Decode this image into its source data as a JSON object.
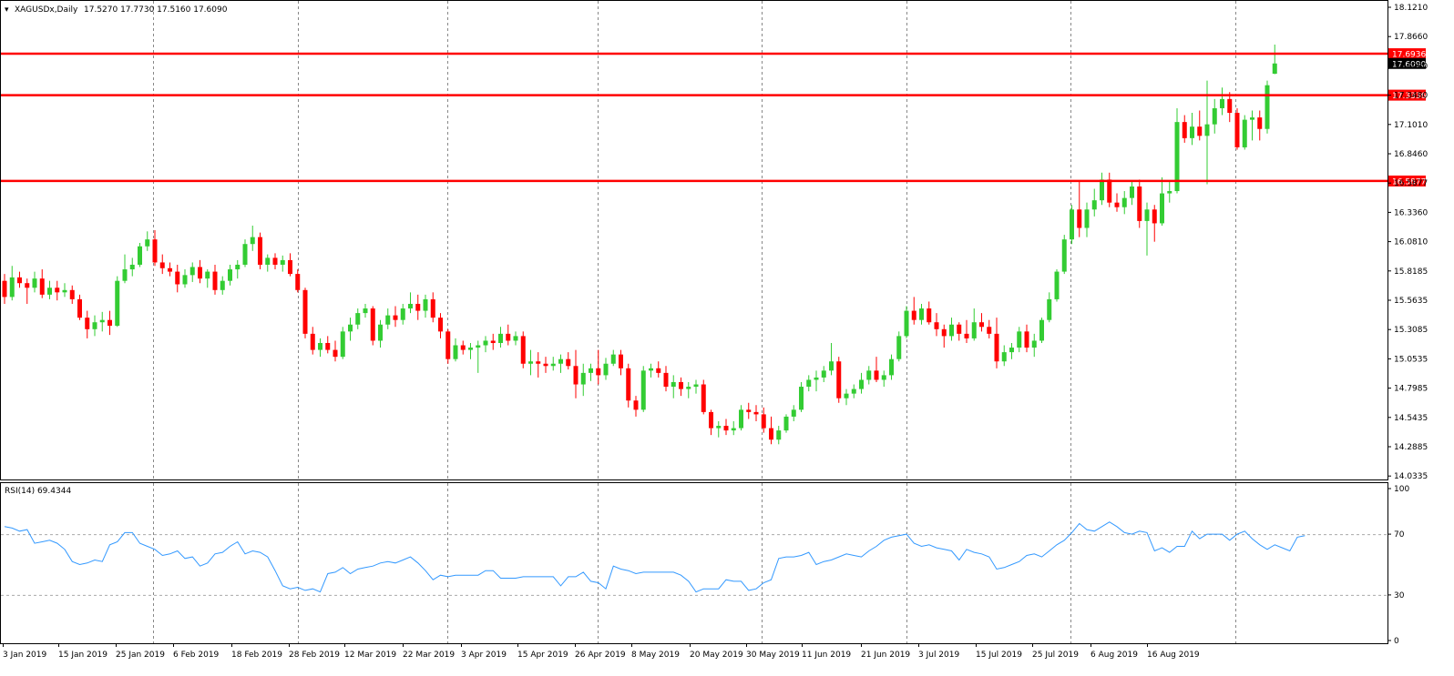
{
  "header": {
    "symbol_label": "XAGUSDx,Daily",
    "ohlc_text": "17.5270 17.7730 17.5160 17.6090"
  },
  "rsi_header": {
    "label": "RSI(14) 69.4344"
  },
  "price_axis": {
    "labels": [
      "18.1210",
      "17.8660",
      "17.6080",
      "17.3480",
      "17.1010",
      "16.8460",
      "16.5877",
      "16.3360",
      "16.0810",
      "15.8185",
      "15.5635",
      "15.3085",
      "15.0535",
      "14.7985",
      "14.5435",
      "14.2885",
      "14.0335"
    ]
  },
  "hlines": [
    {
      "label": "17.6936",
      "value": 17.6936
    },
    {
      "label": "17.3336",
      "value": 17.3336
    },
    {
      "label": "16.5877",
      "value": 16.5877
    }
  ],
  "current_price": {
    "label": "17.6090",
    "value": 17.609
  },
  "rsi_axis": {
    "labels": [
      "100",
      "70",
      "30",
      "0"
    ]
  },
  "time_axis": {
    "labels": [
      "3 Jan 2019",
      "15 Jan 2019",
      "25 Jan 2019",
      "6 Feb 2019",
      "18 Feb 2019",
      "28 Feb 2019",
      "12 Mar 2019",
      "22 Mar 2019",
      "3 Apr 2019",
      "15 Apr 2019",
      "26 Apr 2019",
      "8 May 2019",
      "20 May 2019",
      "30 May 2019",
      "11 Jun 2019",
      "21 Jun 2019",
      "3 Jul 2019",
      "15 Jul 2019",
      "25 Jul 2019",
      "6 Aug 2019",
      "16 Aug 2019"
    ]
  },
  "colors": {
    "bull": "#33cc33",
    "bear": "#ff0000",
    "hline": "#ff0000",
    "rsi": "#3399ff",
    "grid": "#888888"
  },
  "chart_data": {
    "type": "candlestick",
    "symbol": "XAGUSDx",
    "timeframe": "Daily",
    "price_range": [
      14.0335,
      18.121
    ],
    "candles": [
      [
        15.72,
        15.78,
        15.52,
        15.58
      ],
      [
        15.58,
        15.85,
        15.55,
        15.75
      ],
      [
        15.75,
        15.8,
        15.66,
        15.7
      ],
      [
        15.7,
        15.74,
        15.52,
        15.66
      ],
      [
        15.66,
        15.8,
        15.62,
        15.74
      ],
      [
        15.74,
        15.82,
        15.57,
        15.6
      ],
      [
        15.6,
        15.72,
        15.56,
        15.66
      ],
      [
        15.66,
        15.72,
        15.55,
        15.62
      ],
      [
        15.62,
        15.7,
        15.58,
        15.64
      ],
      [
        15.64,
        15.68,
        15.52,
        15.56
      ],
      [
        15.56,
        15.6,
        15.38,
        15.4
      ],
      [
        15.4,
        15.46,
        15.22,
        15.3
      ],
      [
        15.3,
        15.42,
        15.24,
        15.36
      ],
      [
        15.36,
        15.45,
        15.28,
        15.38
      ],
      [
        15.38,
        15.46,
        15.25,
        15.33
      ],
      [
        15.33,
        15.76,
        15.32,
        15.72
      ],
      [
        15.72,
        15.95,
        15.7,
        15.82
      ],
      [
        15.82,
        15.92,
        15.76,
        15.86
      ],
      [
        15.86,
        16.05,
        15.84,
        16.02
      ],
      [
        16.02,
        16.15,
        15.98,
        16.08
      ],
      [
        16.08,
        16.16,
        15.85,
        15.88
      ],
      [
        15.88,
        15.95,
        15.78,
        15.83
      ],
      [
        15.83,
        15.88,
        15.76,
        15.8
      ],
      [
        15.8,
        15.86,
        15.62,
        15.69
      ],
      [
        15.69,
        15.82,
        15.66,
        15.77
      ],
      [
        15.77,
        15.88,
        15.71,
        15.84
      ],
      [
        15.84,
        15.9,
        15.7,
        15.74
      ],
      [
        15.74,
        15.82,
        15.66,
        15.8
      ],
      [
        15.8,
        15.86,
        15.6,
        15.64
      ],
      [
        15.64,
        15.76,
        15.6,
        15.72
      ],
      [
        15.72,
        15.86,
        15.68,
        15.82
      ],
      [
        15.82,
        15.9,
        15.74,
        15.86
      ],
      [
        15.86,
        16.08,
        15.84,
        16.04
      ],
      [
        16.04,
        16.2,
        15.98,
        16.1
      ],
      [
        16.1,
        16.14,
        15.82,
        15.86
      ],
      [
        15.86,
        15.95,
        15.8,
        15.92
      ],
      [
        15.92,
        15.96,
        15.82,
        15.86
      ],
      [
        15.86,
        15.94,
        15.8,
        15.9
      ],
      [
        15.9,
        15.96,
        15.76,
        15.78
      ],
      [
        15.78,
        15.82,
        15.62,
        15.64
      ],
      [
        15.64,
        15.66,
        15.22,
        15.26
      ],
      [
        15.26,
        15.32,
        15.08,
        15.12
      ],
      [
        15.12,
        15.22,
        15.06,
        15.18
      ],
      [
        15.18,
        15.24,
        15.09,
        15.12
      ],
      [
        15.12,
        15.2,
        15.02,
        15.06
      ],
      [
        15.06,
        15.32,
        15.04,
        15.28
      ],
      [
        15.28,
        15.4,
        15.2,
        15.34
      ],
      [
        15.34,
        15.48,
        15.3,
        15.44
      ],
      [
        15.44,
        15.52,
        15.4,
        15.48
      ],
      [
        15.48,
        15.5,
        15.16,
        15.2
      ],
      [
        15.2,
        15.38,
        15.14,
        15.34
      ],
      [
        15.34,
        15.48,
        15.3,
        15.42
      ],
      [
        15.42,
        15.5,
        15.32,
        15.38
      ],
      [
        15.38,
        15.52,
        15.34,
        15.48
      ],
      [
        15.48,
        15.62,
        15.44,
        15.52
      ],
      [
        15.52,
        15.6,
        15.38,
        15.46
      ],
      [
        15.46,
        15.6,
        15.4,
        15.56
      ],
      [
        15.56,
        15.62,
        15.36,
        15.4
      ],
      [
        15.4,
        15.44,
        15.22,
        15.28
      ],
      [
        15.28,
        15.3,
        15.0,
        15.04
      ],
      [
        15.04,
        15.22,
        15.02,
        15.16
      ],
      [
        15.16,
        15.2,
        15.08,
        15.12
      ],
      [
        15.12,
        15.18,
        15.04,
        15.14
      ],
      [
        15.14,
        15.2,
        14.92,
        15.16
      ],
      [
        15.16,
        15.24,
        15.1,
        15.2
      ],
      [
        15.2,
        15.26,
        15.12,
        15.18
      ],
      [
        15.18,
        15.32,
        15.14,
        15.26
      ],
      [
        15.26,
        15.34,
        15.16,
        15.2
      ],
      [
        15.2,
        15.28,
        15.16,
        15.24
      ],
      [
        15.24,
        15.28,
        14.96,
        15.0
      ],
      [
        15.0,
        15.12,
        14.9,
        15.02
      ],
      [
        15.02,
        15.1,
        14.88,
        15.0
      ],
      [
        15.0,
        15.06,
        14.92,
        14.98
      ],
      [
        14.98,
        15.06,
        14.94,
        15.0
      ],
      [
        15.0,
        15.08,
        14.92,
        15.04
      ],
      [
        15.04,
        15.1,
        14.95,
        14.98
      ],
      [
        14.98,
        15.12,
        14.7,
        14.82
      ],
      [
        14.82,
        15.0,
        14.72,
        14.92
      ],
      [
        14.92,
        15.0,
        14.85,
        14.96
      ],
      [
        14.96,
        15.12,
        14.82,
        14.9
      ],
      [
        14.9,
        15.05,
        14.86,
        15.0
      ],
      [
        15.0,
        15.12,
        14.98,
        15.08
      ],
      [
        15.08,
        15.12,
        14.9,
        14.96
      ],
      [
        14.96,
        15.0,
        14.62,
        14.68
      ],
      [
        14.68,
        14.72,
        14.54,
        14.6
      ],
      [
        14.6,
        14.98,
        14.58,
        14.94
      ],
      [
        14.94,
        15.0,
        14.88,
        14.96
      ],
      [
        14.96,
        15.02,
        14.88,
        14.92
      ],
      [
        14.92,
        14.98,
        14.76,
        14.8
      ],
      [
        14.8,
        14.9,
        14.7,
        14.84
      ],
      [
        14.84,
        14.88,
        14.72,
        14.78
      ],
      [
        14.78,
        14.84,
        14.7,
        14.8
      ],
      [
        14.8,
        14.86,
        14.74,
        14.82
      ],
      [
        14.82,
        14.86,
        14.56,
        14.58
      ],
      [
        14.58,
        14.6,
        14.38,
        14.44
      ],
      [
        14.44,
        14.5,
        14.36,
        14.46
      ],
      [
        14.46,
        14.52,
        14.38,
        14.42
      ],
      [
        14.42,
        14.5,
        14.38,
        14.44
      ],
      [
        14.44,
        14.64,
        14.42,
        14.6
      ],
      [
        14.6,
        14.66,
        14.52,
        14.58
      ],
      [
        14.58,
        14.64,
        14.5,
        14.56
      ],
      [
        14.56,
        14.62,
        14.4,
        14.44
      ],
      [
        14.44,
        14.54,
        14.3,
        14.34
      ],
      [
        14.34,
        14.46,
        14.3,
        14.42
      ],
      [
        14.42,
        14.56,
        14.4,
        14.54
      ],
      [
        14.54,
        14.64,
        14.5,
        14.6
      ],
      [
        14.6,
        14.84,
        14.58,
        14.8
      ],
      [
        14.8,
        14.9,
        14.76,
        14.86
      ],
      [
        14.86,
        14.94,
        14.76,
        14.88
      ],
      [
        14.88,
        14.98,
        14.84,
        14.94
      ],
      [
        14.94,
        15.18,
        14.9,
        15.02
      ],
      [
        15.02,
        15.06,
        14.66,
        14.7
      ],
      [
        14.7,
        14.78,
        14.64,
        14.74
      ],
      [
        14.74,
        14.82,
        14.7,
        14.78
      ],
      [
        14.78,
        14.92,
        14.74,
        14.86
      ],
      [
        14.86,
        14.98,
        14.82,
        14.94
      ],
      [
        14.94,
        15.06,
        14.84,
        14.86
      ],
      [
        14.86,
        14.94,
        14.8,
        14.9
      ],
      [
        14.9,
        15.08,
        14.86,
        15.04
      ],
      [
        15.04,
        15.28,
        15.02,
        15.24
      ],
      [
        15.24,
        15.5,
        15.22,
        15.46
      ],
      [
        15.46,
        15.58,
        15.34,
        15.38
      ],
      [
        15.38,
        15.52,
        15.34,
        15.48
      ],
      [
        15.48,
        15.54,
        15.34,
        15.36
      ],
      [
        15.36,
        15.44,
        15.24,
        15.3
      ],
      [
        15.3,
        15.34,
        15.14,
        15.24
      ],
      [
        15.24,
        15.4,
        15.2,
        15.34
      ],
      [
        15.34,
        15.36,
        15.2,
        15.26
      ],
      [
        15.26,
        15.38,
        15.18,
        15.22
      ],
      [
        15.22,
        15.48,
        15.2,
        15.36
      ],
      [
        15.36,
        15.44,
        15.28,
        15.32
      ],
      [
        15.32,
        15.38,
        15.22,
        15.26
      ],
      [
        15.26,
        15.4,
        14.96,
        15.02
      ],
      [
        15.02,
        15.16,
        14.98,
        15.1
      ],
      [
        15.1,
        15.18,
        15.04,
        15.14
      ],
      [
        15.14,
        15.32,
        15.1,
        15.28
      ],
      [
        15.28,
        15.34,
        15.1,
        15.14
      ],
      [
        15.14,
        15.26,
        15.06,
        15.2
      ],
      [
        15.2,
        15.4,
        15.18,
        15.38
      ],
      [
        15.38,
        15.62,
        15.36,
        15.56
      ],
      [
        15.56,
        15.82,
        15.54,
        15.8
      ],
      [
        15.8,
        16.12,
        15.78,
        16.08
      ],
      [
        16.08,
        16.38,
        16.04,
        16.34
      ],
      [
        16.34,
        16.58,
        16.1,
        16.18
      ],
      [
        16.18,
        16.4,
        16.1,
        16.34
      ],
      [
        16.34,
        16.52,
        16.28,
        16.42
      ],
      [
        16.42,
        16.66,
        16.38,
        16.6
      ],
      [
        16.6,
        16.66,
        16.36,
        16.4
      ],
      [
        16.4,
        16.48,
        16.32,
        16.36
      ],
      [
        16.36,
        16.5,
        16.3,
        16.44
      ],
      [
        16.44,
        16.58,
        16.38,
        16.54
      ],
      [
        16.54,
        16.6,
        16.18,
        16.24
      ],
      [
        16.24,
        16.4,
        15.94,
        16.34
      ],
      [
        16.34,
        16.38,
        16.06,
        16.22
      ],
      [
        16.22,
        16.62,
        16.2,
        16.48
      ],
      [
        16.48,
        16.58,
        16.4,
        16.5
      ],
      [
        16.5,
        17.22,
        16.48,
        17.1
      ],
      [
        17.1,
        17.16,
        16.92,
        16.96
      ],
      [
        16.96,
        17.18,
        16.9,
        17.06
      ],
      [
        17.06,
        17.2,
        16.94,
        16.98
      ],
      [
        16.98,
        17.46,
        16.56,
        17.08
      ],
      [
        17.08,
        17.3,
        17.0,
        17.22
      ],
      [
        17.22,
        17.4,
        17.16,
        17.3
      ],
      [
        17.3,
        17.36,
        17.1,
        17.18
      ],
      [
        17.18,
        17.22,
        16.86,
        16.88
      ],
      [
        16.88,
        17.16,
        16.86,
        17.12
      ],
      [
        17.12,
        17.2,
        16.94,
        17.14
      ],
      [
        17.14,
        17.2,
        16.94,
        17.04
      ],
      [
        17.04,
        17.46,
        17.0,
        17.42
      ],
      [
        17.52,
        17.773,
        17.516,
        17.609
      ]
    ],
    "rsi": {
      "name": "RSI(14)",
      "last": 69.4344,
      "levels": [
        70,
        30
      ],
      "range": [
        0,
        100
      ],
      "values": [
        75,
        74,
        72,
        73,
        64,
        65,
        66,
        64,
        60,
        52,
        50,
        51,
        53,
        52,
        63,
        65,
        71,
        71,
        64,
        62,
        60,
        56,
        57,
        59,
        54,
        55,
        49,
        51,
        57,
        58,
        62,
        65,
        57,
        59,
        58,
        55,
        46,
        36,
        34,
        35,
        33,
        34,
        32,
        44,
        45,
        48,
        44,
        47,
        48,
        49,
        51,
        52,
        51,
        53,
        55,
        51,
        46,
        40,
        43,
        42,
        43,
        43,
        43,
        43,
        46,
        46,
        41,
        41,
        41,
        42,
        42,
        42,
        42,
        42,
        36,
        42,
        42,
        45,
        39,
        38,
        34,
        49,
        47,
        46,
        44,
        45,
        45,
        45,
        45,
        45,
        43,
        39,
        32,
        34,
        34,
        34,
        40,
        39,
        39,
        33,
        34,
        38,
        40,
        54,
        55,
        55,
        56,
        58,
        50,
        52,
        53,
        55,
        57,
        56,
        55,
        59,
        62,
        66,
        68,
        69,
        70,
        64,
        62,
        63,
        61,
        60,
        59,
        53,
        60,
        58,
        57,
        55,
        47,
        48,
        50,
        52,
        56,
        57,
        55,
        59,
        63,
        66,
        71,
        77,
        73,
        72,
        75,
        78,
        75,
        71,
        70,
        72,
        71,
        59,
        61,
        58,
        62,
        62,
        72,
        67,
        70,
        70,
        70,
        66,
        70,
        72,
        67,
        63,
        60,
        63,
        61,
        59,
        68,
        69
      ]
    }
  }
}
